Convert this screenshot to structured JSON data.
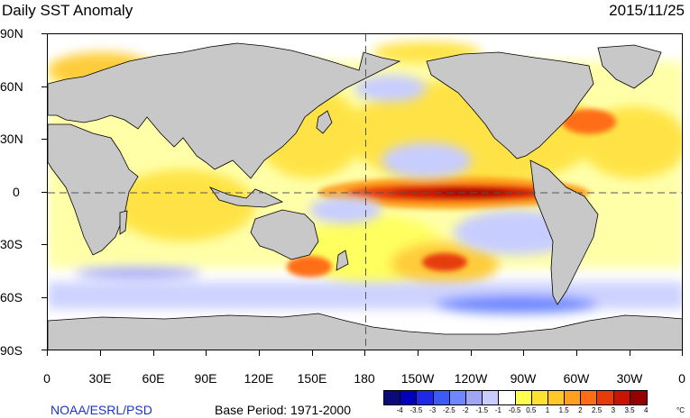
{
  "title": "Daily SST Anomaly",
  "date": "2015/11/25",
  "credit": "NOAA/ESRL/PSD",
  "base_period": "Base Period: 1971-2000",
  "unit": "°C",
  "colors": {
    "land": "#c8c8c8",
    "ocean_neutral": "#ffffff",
    "coastline": "#000000",
    "reference_line": "#555555"
  },
  "axes": {
    "lat_labels": [
      "90N",
      "60N",
      "30N",
      "0",
      "30S",
      "60S",
      "90S"
    ],
    "lon_labels": [
      "0",
      "30E",
      "60E",
      "90E",
      "120E",
      "150E",
      "180",
      "150W",
      "120W",
      "90W",
      "60W",
      "30W",
      "0"
    ]
  },
  "colorbar": {
    "colors": [
      "#0a0a78",
      "#0000bb",
      "#1e28e6",
      "#3c5af5",
      "#6e87ff",
      "#a0a5f5",
      "#c8cdff",
      "#ffffff",
      "#ffff50",
      "#ffe132",
      "#ffc828",
      "#ffa01e",
      "#ff6e14",
      "#e63c0a",
      "#c81400",
      "#960000"
    ],
    "labels": [
      "-4",
      "-3.5",
      "-3",
      "-2.5",
      "-2",
      "-1.5",
      "-1",
      "-0.5",
      "0.5",
      "1",
      "1.5",
      "2",
      "2.5",
      "3",
      "3.5",
      "4"
    ]
  }
}
